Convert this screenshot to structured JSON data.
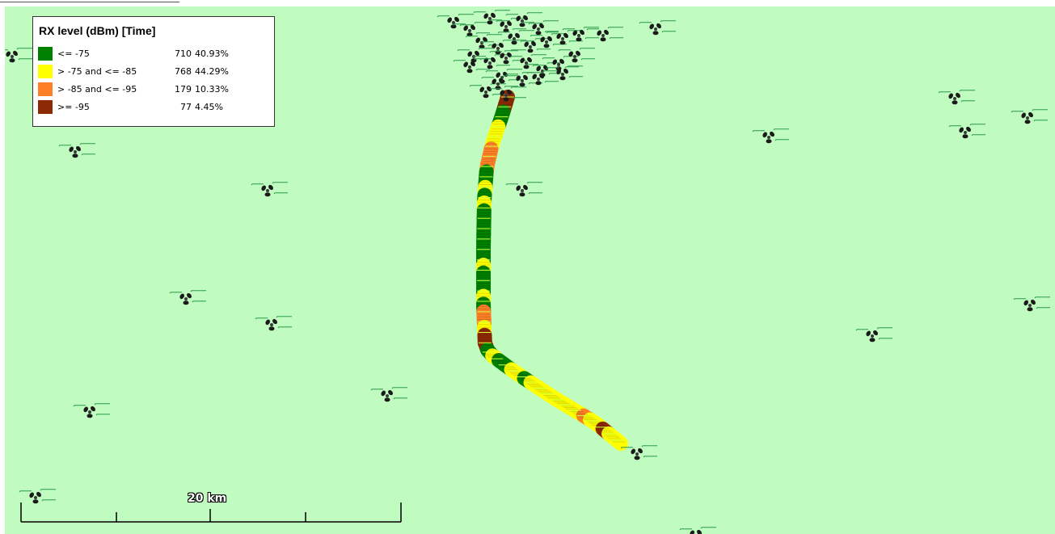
{
  "legend": {
    "title": "RX level (dBm) [Time]",
    "entries": [
      {
        "range": "<= -75",
        "count": "710",
        "percent": "40.93%",
        "color": "#008000"
      },
      {
        "range": "> -75 and <= -85",
        "count": "768",
        "percent": "44.29%",
        "color": "#ffff00"
      },
      {
        "range": "> -85 and <= -95",
        "count": "179",
        "percent": "10.33%",
        "color": "#ff7f27"
      },
      {
        "range": ">= -95",
        "count": "77",
        "percent": "4.45%",
        "color": "#8b2a05"
      }
    ]
  },
  "scale": {
    "label": "20 km"
  },
  "colors": {
    "map_background": "#c0fcc0",
    "site_label": "#2a9a4a",
    "site_icon": "#000000"
  },
  "icons": {
    "cell_site": "cell-site-icon"
  }
}
